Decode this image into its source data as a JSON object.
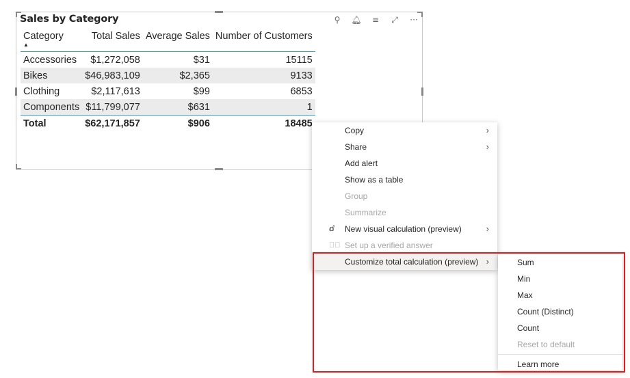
{
  "visual": {
    "title": "Sales by Category",
    "toolbar": [
      {
        "icon": "pin-icon",
        "glyph": "⚲"
      },
      {
        "icon": "bell-icon",
        "glyph": "🔔︎"
      },
      {
        "icon": "filter-icon",
        "glyph": "≡"
      },
      {
        "icon": "focus-mode-icon",
        "glyph": "⤢"
      },
      {
        "icon": "more-options-icon",
        "glyph": "···"
      }
    ],
    "columns": [
      "Category",
      "Total Sales",
      "Average Sales",
      "Number of Customers"
    ],
    "sort_indicator": "▲",
    "rows": [
      [
        "Accessories",
        "$1,272,058",
        "$31",
        "15115"
      ],
      [
        "Bikes",
        "$46,983,109",
        "$2,365",
        "9133"
      ],
      [
        "Clothing",
        "$2,117,613",
        "$99",
        "6853"
      ],
      [
        "Components",
        "$11,799,077",
        "$631",
        "1"
      ]
    ],
    "total": [
      "Total",
      "$62,171,857",
      "$906",
      "18485"
    ]
  },
  "context_menu": {
    "items": [
      {
        "label": "Copy",
        "submenu": true,
        "disabled": false
      },
      {
        "label": "Share",
        "submenu": true,
        "disabled": false
      },
      {
        "label": "Add alert",
        "disabled": false
      },
      {
        "label": "Show as a table",
        "disabled": false
      },
      {
        "label": "Group",
        "disabled": true
      },
      {
        "label": "Summarize",
        "disabled": true
      },
      {
        "label": "New visual calculation (preview)",
        "submenu": true,
        "icon": "visual-calculation-icon",
        "disabled": false
      },
      {
        "label": "Set up a verified answer",
        "icon": "check-circle-icon",
        "disabled": true
      },
      {
        "label": "Customize total calculation (preview)",
        "submenu": true,
        "highlighted": true,
        "disabled": false
      }
    ]
  },
  "submenu": {
    "items": [
      {
        "label": "Sum"
      },
      {
        "label": "Min"
      },
      {
        "label": "Max"
      },
      {
        "label": "Count (Distinct)"
      },
      {
        "label": "Count"
      },
      {
        "label": "Reset to default",
        "disabled": true
      }
    ],
    "footer": "Learn more"
  },
  "highlight_color": "#e3191c"
}
